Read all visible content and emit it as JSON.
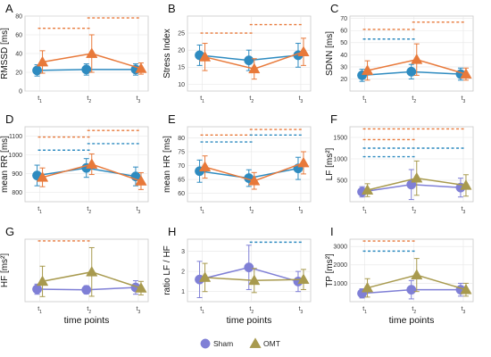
{
  "figure": {
    "xlabel": "time points",
    "legend": [
      {
        "name": "Sham",
        "color": "#7f7fd6",
        "marker": "circle"
      },
      {
        "name": "OMT",
        "color": "#a89a4e",
        "marker": "triangle"
      }
    ]
  },
  "chart_data": [
    {
      "type": "line",
      "letter": "A",
      "ylabel": "RMSSD [ms]",
      "categories": [
        "t1",
        "t2",
        "t3"
      ],
      "ylim": [
        0,
        80
      ],
      "yticks": [
        0,
        20,
        40,
        60,
        80
      ],
      "series": [
        {
          "color": "#2e8bc0",
          "marker": "circle",
          "values": [
            22,
            23,
            23
          ],
          "err": [
            6,
            6,
            6
          ]
        },
        {
          "color": "#e8793a",
          "marker": "triangle",
          "values": [
            31,
            40,
            24
          ],
          "err": [
            12,
            20,
            6
          ]
        }
      ],
      "sig_lines": [
        {
          "from": 0,
          "to": 1,
          "level": 67,
          "color": "#e8793a"
        },
        {
          "from": 1,
          "to": 2,
          "level": 78,
          "color": "#e8793a"
        }
      ]
    },
    {
      "type": "line",
      "letter": "B",
      "ylabel": "Stress Index",
      "categories": [
        "t1",
        "t2",
        "t3"
      ],
      "ylim": [
        8,
        30
      ],
      "yticks": [
        10,
        15,
        20,
        25
      ],
      "series": [
        {
          "color": "#2e8bc0",
          "marker": "circle",
          "values": [
            18.5,
            17,
            18.5
          ],
          "err": [
            3,
            3,
            3.5
          ]
        },
        {
          "color": "#e8793a",
          "marker": "triangle",
          "values": [
            18,
            14.5,
            19.5
          ],
          "err": [
            4,
            3,
            4
          ]
        }
      ],
      "sig_lines": [
        {
          "from": 0,
          "to": 1,
          "level": 25,
          "color": "#e8793a"
        },
        {
          "from": 1,
          "to": 2,
          "level": 27.5,
          "color": "#e8793a"
        }
      ]
    },
    {
      "type": "line",
      "letter": "C",
      "ylabel": "SDNN [ms]",
      "categories": [
        "t1",
        "t2",
        "t3"
      ],
      "ylim": [
        10,
        72
      ],
      "yticks": [
        20,
        30,
        40,
        50,
        60,
        70
      ],
      "series": [
        {
          "color": "#2e8bc0",
          "marker": "circle",
          "values": [
            23,
            26,
            24
          ],
          "err": [
            5,
            6,
            5
          ]
        },
        {
          "color": "#e8793a",
          "marker": "triangle",
          "values": [
            27,
            36,
            24
          ],
          "err": [
            8,
            13,
            5
          ]
        }
      ],
      "sig_lines": [
        {
          "from": 0,
          "to": 1,
          "level": 53,
          "color": "#2e8bc0"
        },
        {
          "from": 0,
          "to": 1,
          "level": 61,
          "color": "#e8793a"
        },
        {
          "from": 1,
          "to": 2,
          "level": 67,
          "color": "#e8793a"
        }
      ]
    },
    {
      "type": "line",
      "letter": "D",
      "ylabel": "mean RR [ms]",
      "categories": [
        "t1",
        "t2",
        "t3"
      ],
      "ylim": [
        750,
        1150
      ],
      "yticks": [
        800,
        900,
        1000,
        1100
      ],
      "series": [
        {
          "color": "#2e8bc0",
          "marker": "circle",
          "values": [
            890,
            930,
            885
          ],
          "err": [
            55,
            50,
            50
          ]
        },
        {
          "color": "#e8793a",
          "marker": "triangle",
          "values": [
            880,
            950,
            860
          ],
          "err": [
            50,
            55,
            45
          ]
        }
      ],
      "sig_lines": [
        {
          "from": 0,
          "to": 1,
          "level": 1025,
          "color": "#2e8bc0"
        },
        {
          "from": 0,
          "to": 1,
          "level": 1095,
          "color": "#e8793a"
        },
        {
          "from": 1,
          "to": 2,
          "level": 1060,
          "color": "#2e8bc0"
        },
        {
          "from": 1,
          "to": 2,
          "level": 1130,
          "color": "#e8793a"
        }
      ]
    },
    {
      "type": "line",
      "letter": "E",
      "ylabel": "mean HR [ms]",
      "categories": [
        "t1",
        "t2",
        "t3"
      ],
      "ylim": [
        57,
        84
      ],
      "yticks": [
        60,
        65,
        70,
        75,
        80
      ],
      "series": [
        {
          "color": "#2e8bc0",
          "marker": "circle",
          "values": [
            68,
            65.5,
            69
          ],
          "err": [
            4,
            3,
            4
          ]
        },
        {
          "color": "#e8793a",
          "marker": "triangle",
          "values": [
            69.5,
            64.5,
            71
          ],
          "err": [
            4,
            3,
            4
          ]
        }
      ],
      "sig_lines": [
        {
          "from": 0,
          "to": 1,
          "level": 78.5,
          "color": "#2e8bc0"
        },
        {
          "from": 0,
          "to": 1,
          "level": 81,
          "color": "#e8793a"
        },
        {
          "from": 1,
          "to": 2,
          "level": 81,
          "color": "#2e8bc0"
        },
        {
          "from": 1,
          "to": 2,
          "level": 83,
          "color": "#e8793a"
        }
      ]
    },
    {
      "type": "line",
      "letter": "F",
      "ylabel": "LF [ms²]",
      "categories": [
        "t1",
        "t2",
        "t3"
      ],
      "ylim": [
        0,
        1750
      ],
      "yticks": [
        500,
        1000,
        1500
      ],
      "series": [
        {
          "color": "#7f7fd6",
          "marker": "circle",
          "values": [
            230,
            400,
            330
          ],
          "err": [
            120,
            350,
            220
          ]
        },
        {
          "color": "#a89a4e",
          "marker": "triangle",
          "values": [
            270,
            550,
            380
          ],
          "err": [
            150,
            400,
            250
          ]
        }
      ],
      "sig_lines": [
        {
          "from": 0,
          "to": 1,
          "level": 1050,
          "color": "#2e8bc0"
        },
        {
          "from": 0,
          "to": 2,
          "level": 1250,
          "color": "#2e8bc0"
        },
        {
          "from": 0,
          "to": 1,
          "level": 1450,
          "color": "#e8793a"
        },
        {
          "from": 0,
          "to": 2,
          "level": 1700,
          "color": "#e8793a"
        }
      ]
    },
    {
      "type": "line",
      "letter": "G",
      "ylabel": "HF [ms²]",
      "categories": [
        "t1",
        "t2",
        "t3"
      ],
      "ylim": [
        -100,
        1750
      ],
      "yticks": [],
      "series": [
        {
          "color": "#7f7fd6",
          "marker": "circle",
          "values": [
            270,
            250,
            320
          ],
          "err": [
            150,
            120,
            200
          ]
        },
        {
          "color": "#a89a4e",
          "marker": "triangle",
          "values": [
            500,
            780,
            300
          ],
          "err": [
            450,
            720,
            200
          ]
        }
      ],
      "sig_lines": [
        {
          "from": 0,
          "to": 1,
          "level": 1700,
          "color": "#e8793a"
        }
      ]
    },
    {
      "type": "line",
      "letter": "H",
      "ylabel": "ratio LF / HF",
      "categories": [
        "t1",
        "t2",
        "t3"
      ],
      "ylim": [
        0.5,
        3.6
      ],
      "yticks": [
        1,
        2,
        3
      ],
      "series": [
        {
          "color": "#7f7fd6",
          "marker": "circle",
          "values": [
            1.6,
            2.2,
            1.5
          ],
          "err": [
            0.9,
            1.1,
            0.5
          ]
        },
        {
          "color": "#a89a4e",
          "marker": "triangle",
          "values": [
            1.7,
            1.55,
            1.6
          ],
          "err": [
            0.7,
            0.6,
            0.5
          ]
        }
      ],
      "sig_lines": [
        {
          "from": 1,
          "to": 2,
          "level": 3.45,
          "color": "#2e8bc0"
        }
      ]
    },
    {
      "type": "line",
      "letter": "I",
      "ylabel": "TP [ms²]",
      "categories": [
        "t1",
        "t2",
        "t3"
      ],
      "ylim": [
        0,
        3400
      ],
      "yticks": [
        1000,
        2000,
        3000
      ],
      "series": [
        {
          "color": "#7f7fd6",
          "marker": "circle",
          "values": [
            450,
            650,
            650
          ],
          "err": [
            250,
            500,
            350
          ]
        },
        {
          "color": "#a89a4e",
          "marker": "triangle",
          "values": [
            750,
            1450,
            650
          ],
          "err": [
            500,
            900,
            350
          ]
        }
      ],
      "sig_lines": [
        {
          "from": 0,
          "to": 1,
          "level": 2750,
          "color": "#2e8bc0"
        },
        {
          "from": 0,
          "to": 1,
          "level": 3300,
          "color": "#e8793a"
        }
      ]
    }
  ]
}
